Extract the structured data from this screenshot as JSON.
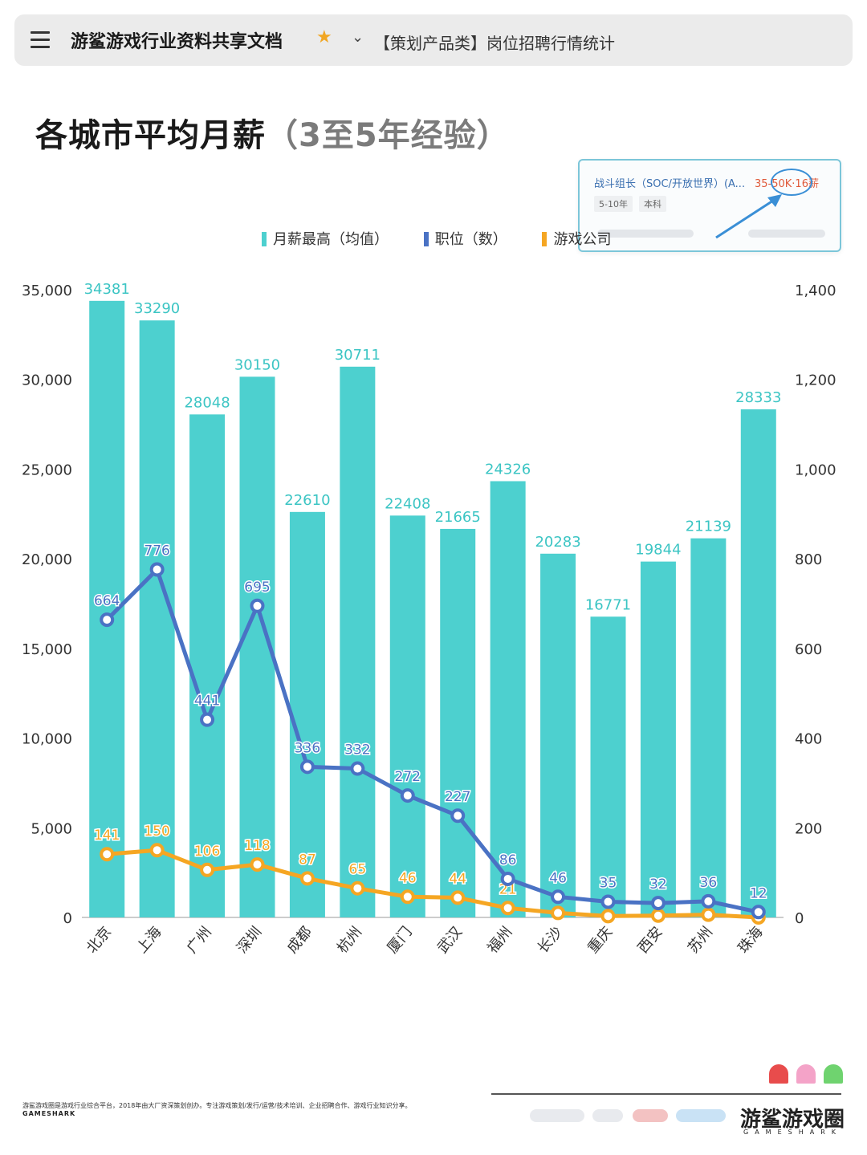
{
  "header": {
    "app_title": "游鲨游戏行业资料共享文档",
    "doc_title": "【策划产品类】岗位招聘行情统计"
  },
  "page": {
    "title": "各城市平均月薪",
    "subtitle": "（3至5年经验）"
  },
  "job_card": {
    "title": "战斗组长（SOC/开放世界）(A...",
    "salary": "35-50K·16薪",
    "tags": [
      "5-10年",
      "本科"
    ]
  },
  "legend": [
    "月薪最高（均值）",
    "职位（数）",
    "游戏公司"
  ],
  "colors": {
    "bar": "#4dd0cf",
    "positions_line": "#4a72c4",
    "companies_line": "#f5a623",
    "bar_label": "#3cc5c4",
    "accent_star": "#f1a623"
  },
  "chart_data": {
    "type": "bar+line",
    "categories": [
      "北京",
      "上海",
      "广州",
      "深圳",
      "成都",
      "杭州",
      "厦门",
      "武汉",
      "福州",
      "长沙",
      "重庆",
      "西安",
      "苏州",
      "珠海"
    ],
    "series": [
      {
        "name": "月薪最高（均值）",
        "type": "bar",
        "axis": "left",
        "values": [
          34381,
          33290,
          28048,
          30150,
          22610,
          30711,
          22408,
          21665,
          24326,
          20283,
          16771,
          19844,
          21139,
          28333
        ]
      },
      {
        "name": "职位（数）",
        "type": "line",
        "axis": "right",
        "values": [
          664,
          776,
          441,
          695,
          336,
          332,
          272,
          227,
          86,
          46,
          35,
          32,
          36,
          12
        ]
      },
      {
        "name": "游戏公司",
        "type": "line",
        "axis": "right",
        "values": [
          141,
          150,
          106,
          118,
          87,
          65,
          46,
          44,
          21,
          null,
          null,
          null,
          null,
          null
        ]
      }
    ],
    "companies_unlabeled_estimates": [
      10,
      3,
      4,
      6,
      0
    ],
    "left_axis": {
      "min": 0,
      "max": 35000,
      "ticks": [
        "0",
        "5,000",
        "10,000",
        "15,000",
        "20,000",
        "25,000",
        "30,000",
        "35,000"
      ]
    },
    "right_axis": {
      "min": 0,
      "max": 1400,
      "ticks": [
        "0",
        "200",
        "400",
        "600",
        "800",
        "1,000",
        "1,200",
        "1,400"
      ]
    }
  },
  "footer": {
    "description": "游鲨游戏圈是游戏行业综合平台，2018年由大厂资深策划创办。专注游戏策划/发行/运营/技术培训、企业招聘合作、游戏行业知识分享。",
    "brand_small": "GAMESHARK",
    "brand": "游鲨游戏圈",
    "brand_sub": "GAMESHARK"
  }
}
